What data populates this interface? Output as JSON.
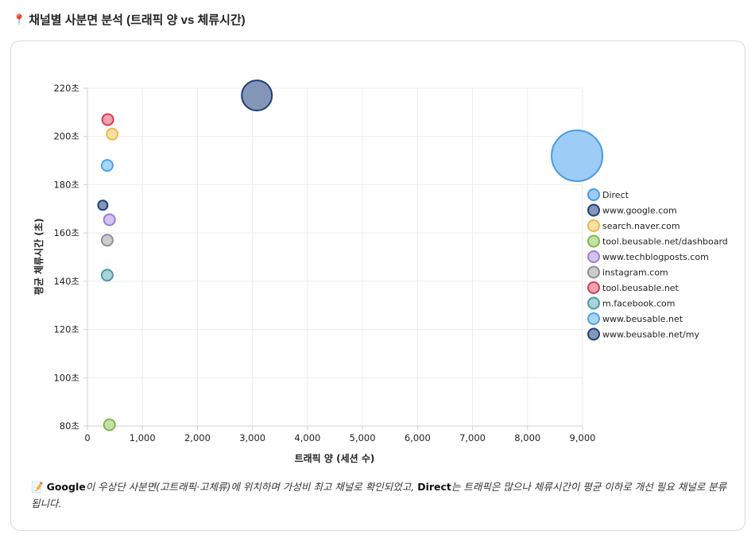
{
  "title": {
    "icon": "pin-icon",
    "icon_glyph": "📍",
    "text": "채널별 사분면 분석 (트래픽 양 vs 체류시간)"
  },
  "note": {
    "icon": "memo-icon",
    "icon_glyph": "📝",
    "strong1": "Google",
    "text1": "이 우상단 사분면(고트래픽·고체류)에 위치하며 가성비 최고 채널로 확인되었고, ",
    "strong2": "Direct",
    "text2": "는 트래픽은 많으나 체류시간이 평균 이하로 개선 필요 채널로 분류됩니다."
  },
  "chart_data": {
    "type": "scatter",
    "variant": "bubble",
    "xlabel": "트래픽 양 (세션 수)",
    "ylabel": "평균 체류시간 (초)",
    "xlim": [
      0,
      9000
    ],
    "ylim": [
      80,
      220
    ],
    "x_ticks": [
      "0",
      "1,000",
      "2,000",
      "3,000",
      "4,000",
      "5,000",
      "6,000",
      "7,000",
      "8,000",
      "9,000"
    ],
    "x_tick_values": [
      0,
      1000,
      2000,
      3000,
      4000,
      5000,
      6000,
      7000,
      8000,
      9000
    ],
    "y_ticks": [
      "80초",
      "100초",
      "120초",
      "140초",
      "160초",
      "180초",
      "200초",
      "220초"
    ],
    "y_tick_values": [
      80,
      100,
      120,
      140,
      160,
      180,
      200,
      220
    ],
    "grid": true,
    "legend_position": "right",
    "series": [
      {
        "name": "Direct",
        "x": 8900,
        "y": 192,
        "r": 32,
        "fill": "#9dcdf7",
        "stroke": "#4a9be0"
      },
      {
        "name": "www.google.com",
        "x": 3080,
        "y": 217,
        "r": 19,
        "fill": "#8396b8",
        "stroke": "#1f3f7a"
      },
      {
        "name": "search.naver.com",
        "x": 450,
        "y": 201,
        "r": 7,
        "fill": "#fbe0a6",
        "stroke": "#e8b84a"
      },
      {
        "name": "tool.beusable.net/dashboard",
        "x": 400,
        "y": 80.5,
        "r": 7,
        "fill": "#c4e0a8",
        "stroke": "#7fb84a"
      },
      {
        "name": "www.techblogposts.com",
        "x": 400,
        "y": 165.5,
        "r": 7,
        "fill": "#d3c3f0",
        "stroke": "#9a7fd6"
      },
      {
        "name": "instagram.com",
        "x": 360,
        "y": 157,
        "r": 7,
        "fill": "#cccccc",
        "stroke": "#8f8f8f"
      },
      {
        "name": "tool.beusable.net",
        "x": 370,
        "y": 207,
        "r": 7,
        "fill": "#f0a2ae",
        "stroke": "#dc3a55"
      },
      {
        "name": "m.facebook.com",
        "x": 360,
        "y": 142.5,
        "r": 7,
        "fill": "#a9d3da",
        "stroke": "#4a9aa6"
      },
      {
        "name": "www.beusable.net",
        "x": 360,
        "y": 188,
        "r": 7,
        "fill": "#a9d6f7",
        "stroke": "#4aa4e8"
      },
      {
        "name": "www.beusable.net/my",
        "x": 280,
        "y": 171.5,
        "r": 6,
        "fill": "#8396b8",
        "stroke": "#1f3f7a"
      }
    ]
  }
}
